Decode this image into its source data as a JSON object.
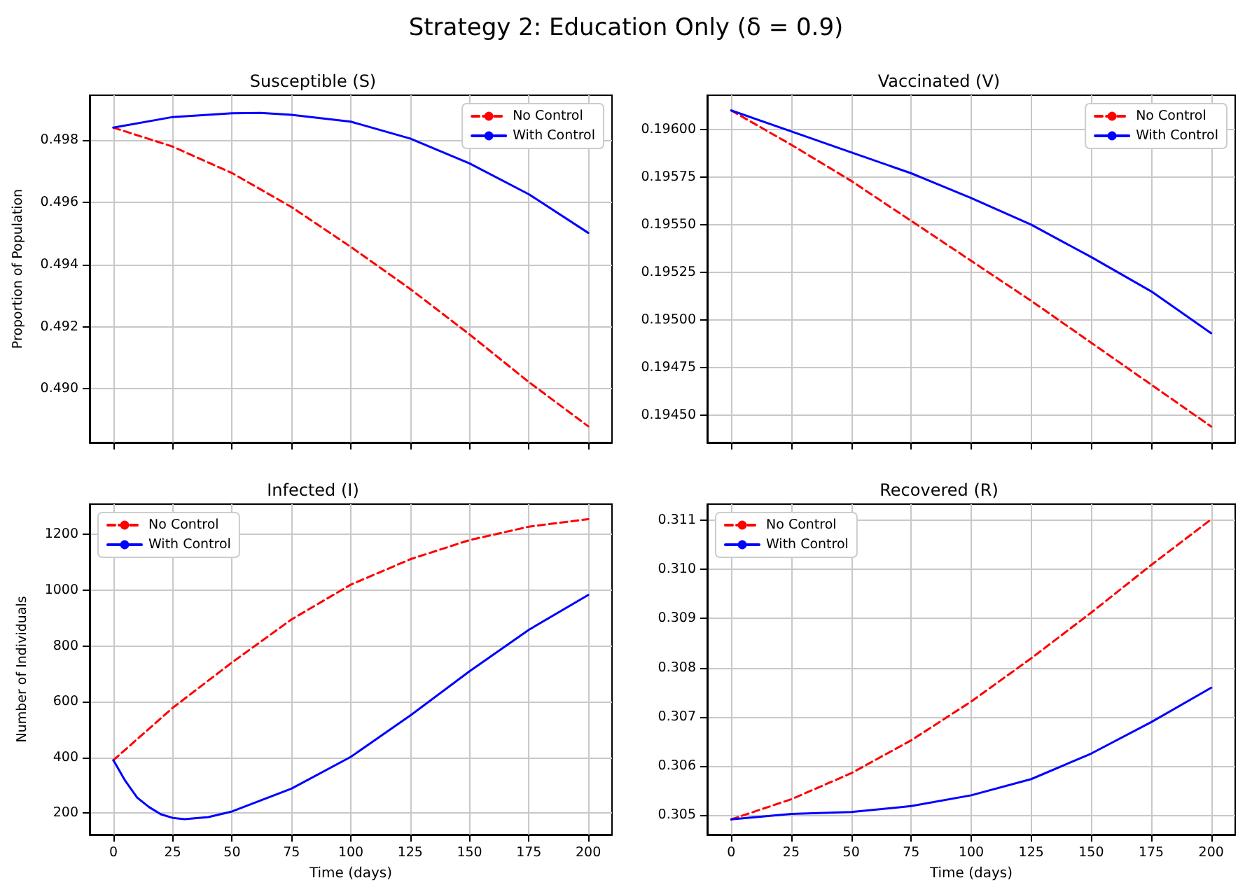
{
  "chart_data": [
    {
      "type": "line",
      "title": "Susceptible (S)",
      "ylabel": "Proportion of Population",
      "annotations": [
        "Strategy 2: Education Only (δ = 0.9)"
      ],
      "x": [
        0,
        25,
        50,
        62,
        75,
        100,
        125,
        150,
        175,
        200
      ],
      "series": [
        {
          "name": "No Control",
          "color": "#ff0000",
          "line_style": "dashed",
          "x": [
            0,
            25,
            50,
            75,
            100,
            125,
            150,
            175,
            200
          ],
          "values": [
            0.49839,
            0.49778,
            0.49693,
            0.49584,
            0.49456,
            0.49321,
            0.49175,
            0.49022,
            0.4888
          ]
        },
        {
          "name": "With Control",
          "color": "#0000ff",
          "line_style": "solid",
          "values": [
            0.49839,
            0.49873,
            0.49885,
            0.49886,
            0.4988,
            0.49858,
            0.49804,
            0.49724,
            0.49625,
            0.49501
          ]
        }
      ],
      "xlim": [
        -10,
        210
      ],
      "xticks": [
        0,
        25,
        50,
        75,
        100,
        125,
        150,
        175,
        200
      ],
      "ylim": [
        0.48828,
        0.49943
      ],
      "yticks": [
        {
          "value": 0.49,
          "label": "0.490"
        },
        {
          "value": 0.492,
          "label": "0.492"
        },
        {
          "value": 0.494,
          "label": "0.494"
        },
        {
          "value": 0.496,
          "label": "0.496"
        },
        {
          "value": 0.498,
          "label": "0.498"
        }
      ],
      "tick_labels": "y",
      "grid": true,
      "legend": "top right",
      "marker": "none"
    },
    {
      "type": "line",
      "title": "Vaccinated (V)",
      "x": [
        0,
        25,
        50,
        75,
        100,
        125,
        150,
        175,
        200
      ],
      "series": [
        {
          "name": "No Control",
          "color": "#ff0000",
          "line_style": "dashed",
          "values": [
            0.1961,
            0.19592,
            0.19573,
            0.19552,
            0.19531,
            0.1951,
            0.19488,
            0.19466,
            0.19444
          ]
        },
        {
          "name": "With Control",
          "color": "#0000ff",
          "line_style": "solid",
          "values": [
            0.1961,
            0.19599,
            0.19588,
            0.19577,
            0.19564,
            0.1955,
            0.19533,
            0.19515,
            0.19493
          ]
        }
      ],
      "xlim": [
        -10,
        210
      ],
      "xticks": [
        0,
        25,
        50,
        75,
        100,
        125,
        150,
        175,
        200
      ],
      "ylim": [
        0.194356,
        0.19618
      ],
      "yticks": [
        {
          "value": 0.1945,
          "label": "0.19450"
        },
        {
          "value": 0.19475,
          "label": "0.19475"
        },
        {
          "value": 0.195,
          "label": "0.19500"
        },
        {
          "value": 0.19525,
          "label": "0.19525"
        },
        {
          "value": 0.1955,
          "label": "0.19550"
        },
        {
          "value": 0.19575,
          "label": "0.19575"
        },
        {
          "value": 0.196,
          "label": "0.19600"
        }
      ],
      "tick_labels": "y",
      "grid": true,
      "legend": "top right",
      "marker": "none"
    },
    {
      "type": "line",
      "title": "Infected (I)",
      "xlabel": "Time (days)",
      "ylabel": "Number of Individuals",
      "x": [
        0,
        5,
        10,
        15,
        20,
        25,
        30,
        40,
        50,
        75,
        100,
        125,
        150,
        175,
        200
      ],
      "series": [
        {
          "name": "No Control",
          "color": "#ff0000",
          "line_style": "dashed",
          "x": [
            0,
            25,
            50,
            75,
            100,
            125,
            150,
            175,
            200
          ],
          "values": [
            390,
            578,
            741,
            895,
            1020,
            1111,
            1180,
            1228,
            1255
          ]
        },
        {
          "name": "With Control",
          "color": "#0000ff",
          "line_style": "solid",
          "values": [
            390,
            316,
            256,
            222,
            196,
            183,
            178,
            186,
            206,
            288,
            402,
            550,
            709,
            858,
            983
          ]
        }
      ],
      "xlim": [
        -10,
        210
      ],
      "xticks": [
        0,
        25,
        50,
        75,
        100,
        125,
        150,
        175,
        200
      ],
      "ylim": [
        123,
        1309
      ],
      "yticks": [
        200,
        400,
        600,
        800,
        1000,
        1200
      ],
      "grid": true,
      "legend": "top left",
      "marker": "none"
    },
    {
      "type": "line",
      "title": "Recovered (R)",
      "xlabel": "Time (days)",
      "x": [
        0,
        25,
        50,
        75,
        100,
        125,
        150,
        175,
        200
      ],
      "series": [
        {
          "name": "No Control",
          "color": "#ff0000",
          "line_style": "dashed",
          "values": [
            0.30491,
            0.30532,
            0.30585,
            0.30652,
            0.30731,
            0.30819,
            0.30912,
            0.31009,
            0.31102
          ]
        },
        {
          "name": "With Control",
          "color": "#0000ff",
          "line_style": "solid",
          "values": [
            0.30491,
            0.30502,
            0.30506,
            0.30518,
            0.3054,
            0.30573,
            0.30625,
            0.30689,
            0.30759
          ]
        }
      ],
      "xlim": [
        -10,
        210
      ],
      "xticks": [
        0,
        25,
        50,
        75,
        100,
        125,
        150,
        175,
        200
      ],
      "ylim": [
        0.3046,
        0.31133
      ],
      "yticks": [
        {
          "value": 0.305,
          "label": "0.305"
        },
        {
          "value": 0.306,
          "label": "0.306"
        },
        {
          "value": 0.307,
          "label": "0.307"
        },
        {
          "value": 0.308,
          "label": "0.308"
        },
        {
          "value": 0.309,
          "label": "0.309"
        },
        {
          "value": 0.31,
          "label": "0.310"
        },
        {
          "value": 0.311,
          "label": "0.311"
        }
      ],
      "grid": true,
      "legend": "top left",
      "marker": "none"
    }
  ]
}
